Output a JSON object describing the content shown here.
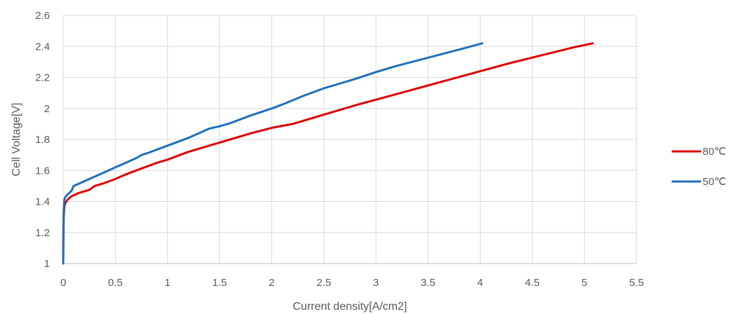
{
  "chart_data": {
    "type": "line",
    "title": "",
    "xlabel": "Current density[A/cm2]",
    "ylabel": "Cell Voltage[V]",
    "xlim": [
      0,
      5.5
    ],
    "ylim": [
      1,
      2.6
    ],
    "xticks": [
      "0",
      "0.5",
      "1",
      "1.5",
      "2",
      "2.5",
      "3",
      "3.5",
      "4",
      "4.5",
      "5",
      "5.5"
    ],
    "yticks": [
      "1",
      "1.2",
      "1.4",
      "1.6",
      "1.8",
      "2",
      "2.2",
      "2.4",
      "2.6"
    ],
    "grid": true,
    "legend_position": "right",
    "series": [
      {
        "name": "80℃",
        "color": "#e00000",
        "x": [
          0,
          0.002,
          0.005,
          0.01,
          0.02,
          0.04,
          0.07,
          0.1,
          0.15,
          0.2,
          0.25,
          0.3,
          0.4,
          0.5,
          0.6,
          0.7,
          0.8,
          0.9,
          1.0,
          1.1,
          1.2,
          1.4,
          1.6,
          1.8,
          2.0,
          2.2,
          2.5,
          2.8,
          3.1,
          3.4,
          3.7,
          4.0,
          4.3,
          4.6,
          4.9,
          5.08
        ],
        "y": [
          1.0,
          1.2,
          1.3,
          1.36,
          1.39,
          1.41,
          1.43,
          1.44,
          1.455,
          1.465,
          1.475,
          1.5,
          1.52,
          1.545,
          1.575,
          1.6,
          1.625,
          1.65,
          1.67,
          1.695,
          1.72,
          1.76,
          1.8,
          1.84,
          1.875,
          1.9,
          1.96,
          2.02,
          2.075,
          2.13,
          2.185,
          2.24,
          2.295,
          2.345,
          2.395,
          2.42
        ]
      },
      {
        "name": "50℃",
        "color": "#1f6fba",
        "x": [
          0,
          0.002,
          0.005,
          0.01,
          0.02,
          0.05,
          0.08,
          0.1,
          0.2,
          0.3,
          0.4,
          0.5,
          0.6,
          0.7,
          0.75,
          0.8,
          1.0,
          1.2,
          1.3,
          1.4,
          1.5,
          1.6,
          1.8,
          2.0,
          2.1,
          2.3,
          2.5,
          2.8,
          3.0,
          3.2,
          3.4,
          3.6,
          3.8,
          4.02
        ],
        "y": [
          1.0,
          1.25,
          1.35,
          1.41,
          1.43,
          1.45,
          1.47,
          1.5,
          1.53,
          1.56,
          1.59,
          1.62,
          1.65,
          1.68,
          1.7,
          1.71,
          1.76,
          1.81,
          1.84,
          1.87,
          1.885,
          1.905,
          1.955,
          2.0,
          2.025,
          2.08,
          2.13,
          2.19,
          2.235,
          2.275,
          2.31,
          2.345,
          2.38,
          2.42
        ]
      }
    ]
  }
}
